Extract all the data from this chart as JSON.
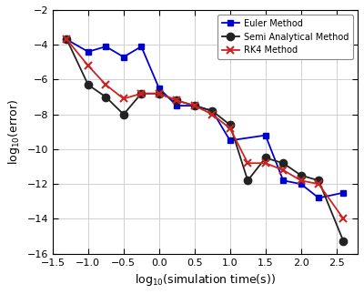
{
  "euler_x": [
    -1.3,
    -1.0,
    -0.75,
    -0.5,
    -0.25,
    0.0,
    0.25,
    0.5,
    0.75,
    1.0,
    1.5,
    1.75,
    2.0,
    2.25,
    2.6
  ],
  "euler_y": [
    -3.7,
    -4.4,
    -4.1,
    -4.7,
    -4.1,
    -6.5,
    -7.5,
    -7.5,
    -7.8,
    -9.5,
    -9.2,
    -11.8,
    -12.0,
    -12.8,
    -12.5
  ],
  "semi_x": [
    -1.3,
    -1.0,
    -0.75,
    -0.5,
    -0.25,
    0.0,
    0.25,
    0.5,
    0.75,
    1.0,
    1.25,
    1.5,
    1.75,
    2.0,
    2.25,
    2.6
  ],
  "semi_y": [
    -3.7,
    -6.3,
    -7.0,
    -8.0,
    -6.8,
    -6.8,
    -7.2,
    -7.5,
    -7.8,
    -8.6,
    -11.8,
    -10.5,
    -10.8,
    -11.5,
    -11.8,
    -15.3
  ],
  "rk4_x": [
    -1.3,
    -1.0,
    -0.75,
    -0.5,
    -0.25,
    0.0,
    0.25,
    0.5,
    0.75,
    1.0,
    1.25,
    1.5,
    1.75,
    2.0,
    2.25,
    2.6
  ],
  "rk4_y": [
    -3.7,
    -5.2,
    -6.3,
    -7.1,
    -6.8,
    -6.8,
    -7.2,
    -7.5,
    -8.0,
    -8.8,
    -10.8,
    -10.8,
    -11.2,
    -11.8,
    -12.0,
    -14.0
  ],
  "euler_color": "#0000cc",
  "semi_color": "#222222",
  "rk4_color": "#cc2222",
  "xlabel": "log$_{10}$(simulation time(s))",
  "ylabel": "log$_{10}$(error)",
  "xlim": [
    -1.5,
    2.8
  ],
  "ylim": [
    -16,
    -2
  ],
  "xticks": [
    -1.5,
    -1.0,
    -0.5,
    0.0,
    0.5,
    1.0,
    1.5,
    2.0,
    2.5
  ],
  "yticks": [
    -16,
    -14,
    -12,
    -10,
    -8,
    -6,
    -4,
    -2
  ],
  "grid_color": "#d0d0d0",
  "background_color": "#ffffff",
  "legend_labels": [
    "Euler Method",
    "Semi Analytical Method",
    "RK4 Method"
  ],
  "legend_loc": "upper right",
  "figsize": [
    4.0,
    3.23
  ],
  "dpi": 100
}
